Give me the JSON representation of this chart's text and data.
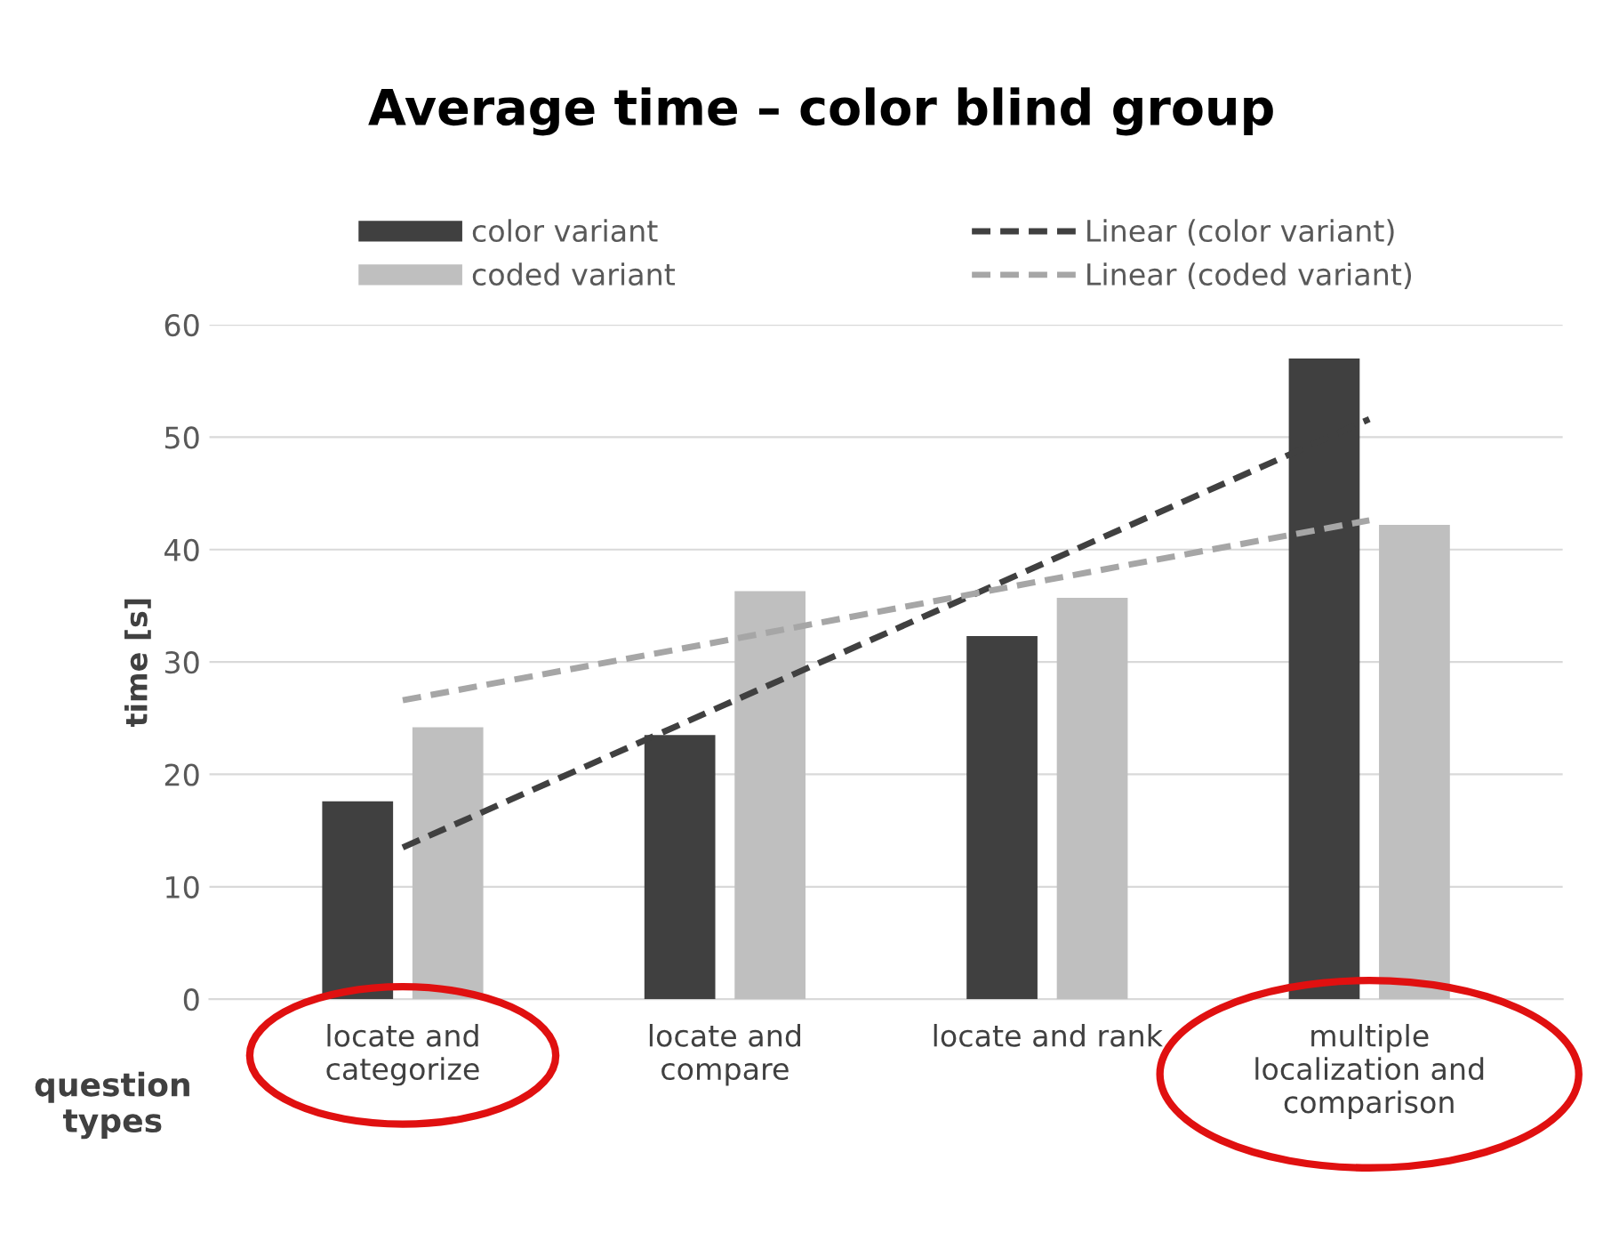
{
  "chart_data": {
    "type": "bar",
    "title": "Average time – color blind group",
    "ylabel": "time [s]",
    "xlabel": "question\ntypes",
    "categories": [
      "locate and\ncategorize",
      "locate and\ncompare",
      "locate and rank",
      "multiple\nlocalization and\ncomparison"
    ],
    "series": [
      {
        "name": "color variant",
        "color": "#404040",
        "values": [
          17.6,
          23.5,
          32.3,
          57
        ]
      },
      {
        "name": "coded variant",
        "color": "#bfbfbf",
        "values": [
          24.2,
          36.3,
          35.7,
          42.2
        ]
      },
      {
        "name": "Linear (color variant)",
        "type": "line",
        "line_style": "dashed",
        "color": "#404040",
        "values": [
          13.5,
          26.2,
          38.9,
          51.6
        ]
      },
      {
        "name": "Linear (coded variant)",
        "type": "line",
        "line_style": "dashed",
        "color": "#a6a6a6",
        "values": [
          26.6,
          31.9,
          37.3,
          42.6
        ]
      }
    ],
    "ylim": [
      0,
      60
    ],
    "yticks": [
      0,
      10,
      20,
      30,
      40,
      50,
      60
    ],
    "grid": "y",
    "legend": "top"
  }
}
